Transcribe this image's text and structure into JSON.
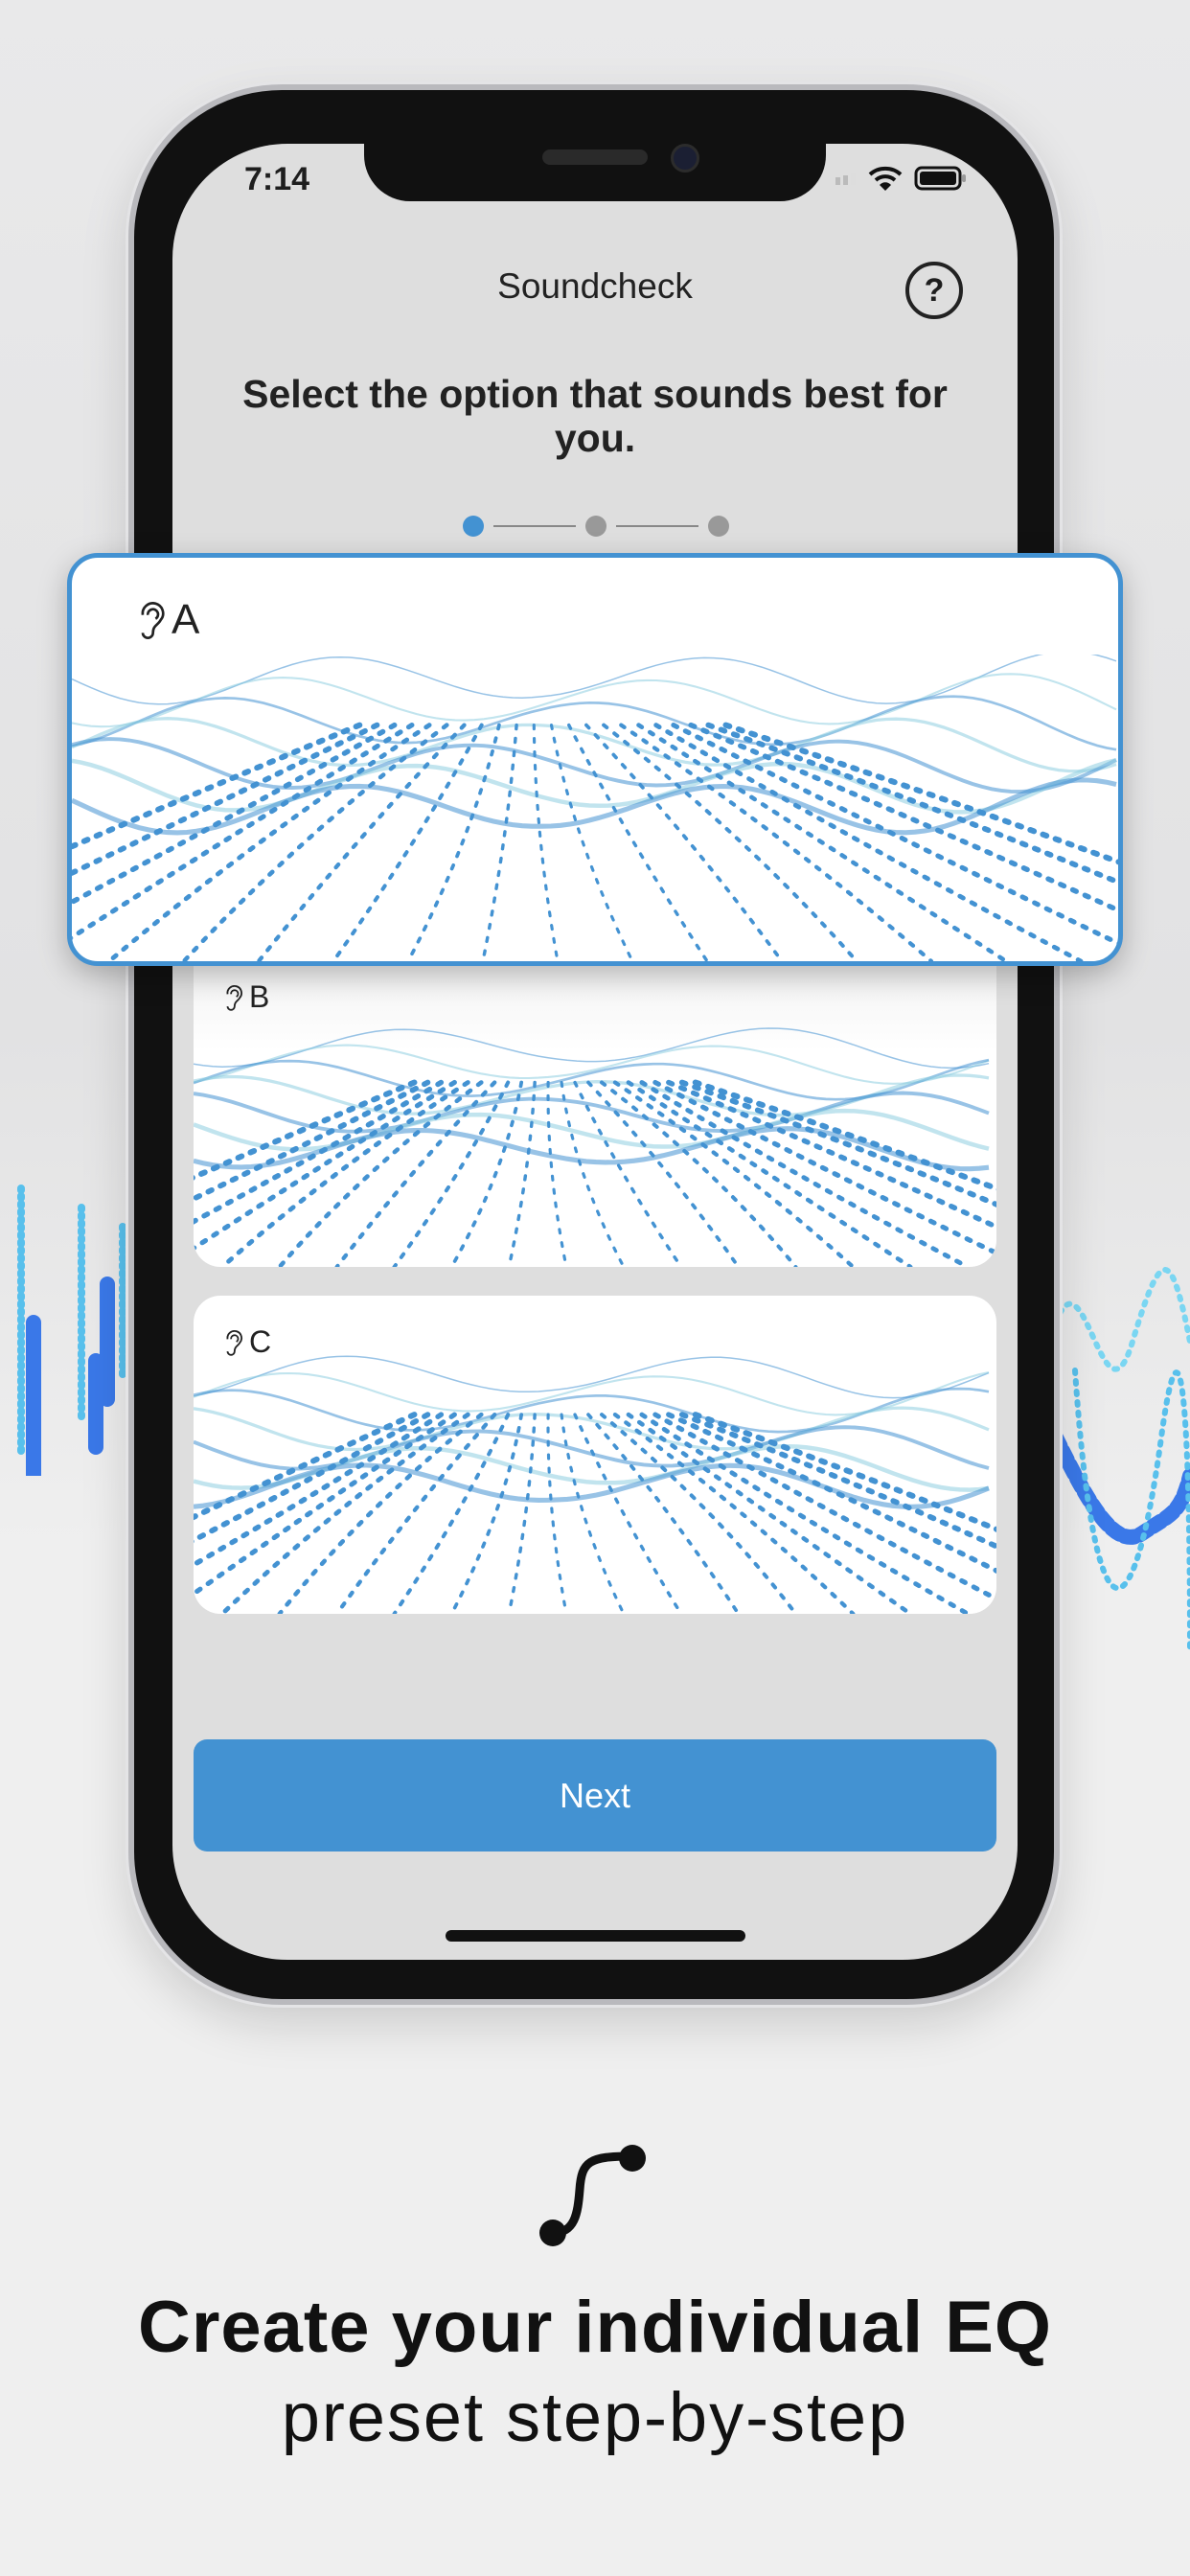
{
  "status_bar": {
    "time": "7:14"
  },
  "header": {
    "title": "Soundcheck",
    "help_icon": "question-circle-icon"
  },
  "prompt": "Select the option that sounds best for you.",
  "stepper": {
    "current": 1,
    "total": 3
  },
  "options": [
    {
      "label": "A",
      "selected": true
    },
    {
      "label": "B",
      "selected": false
    },
    {
      "label": "C",
      "selected": false
    }
  ],
  "next_button": {
    "label": "Next"
  },
  "tagline": {
    "line1": "Create your individual EQ",
    "line2": "preset step-by-step",
    "icon": "eq-curve-icon"
  },
  "colors": {
    "accent": "#4392d2",
    "wave_light": "#8ecde0"
  }
}
